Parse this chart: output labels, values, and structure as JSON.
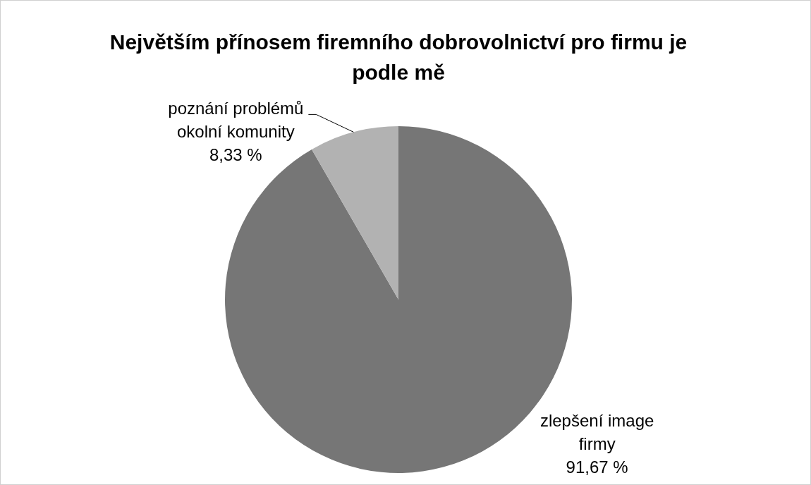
{
  "chart_data": {
    "type": "pie",
    "title": "Největším přínosem firemního dobrovolnictví pro firmu je podle mě",
    "categories": [
      "zlepšení image firmy",
      "poznání problémů okolní komunity"
    ],
    "values": [
      91.67,
      8.33
    ],
    "colors": [
      "#767676",
      "#b2b2b2"
    ],
    "value_labels": [
      "91,67 %",
      "8,33 %"
    ]
  }
}
